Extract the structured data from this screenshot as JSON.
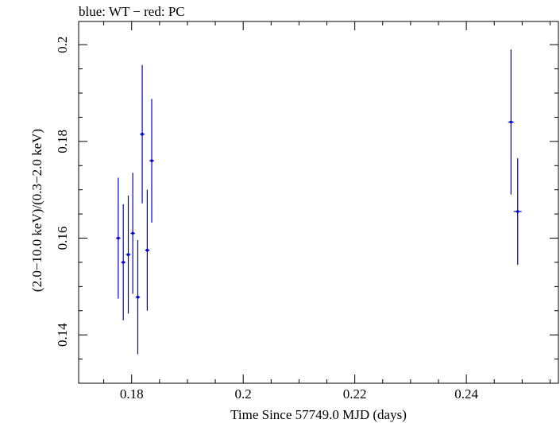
{
  "chart_data": {
    "type": "scatter",
    "title": "blue: WT − red: PC",
    "xlabel": "Time Since 57749.0 MJD (days)",
    "ylabel": "(2.0−10.0 keV)/(0.3−2.0 keV)",
    "xlim": [
      0.1705,
      0.2565
    ],
    "ylim": [
      0.13,
      0.2048
    ],
    "x_ticks": [
      0.18,
      0.2,
      0.22,
      0.24
    ],
    "x_tick_labels": [
      "0.18",
      "0.2",
      "0.22",
      "0.24"
    ],
    "y_ticks": [
      0.14,
      0.16,
      0.18,
      0.2
    ],
    "y_tick_labels": [
      "0.14",
      "0.16",
      "0.18",
      "0.2"
    ],
    "grid": false,
    "series": [
      {
        "name": "WT",
        "color": "#0000cc",
        "points": [
          {
            "x": 0.1776,
            "y": 0.16,
            "xerr": 0.0004,
            "yerr": 0.0125
          },
          {
            "x": 0.1785,
            "y": 0.155,
            "xerr": 0.0004,
            "yerr": 0.012
          },
          {
            "x": 0.1794,
            "y": 0.1566,
            "xerr": 0.0004,
            "yerr": 0.0122
          },
          {
            "x": 0.1802,
            "y": 0.161,
            "xerr": 0.0004,
            "yerr": 0.0125
          },
          {
            "x": 0.1811,
            "y": 0.1478,
            "xerr": 0.0004,
            "yerr": 0.0118
          },
          {
            "x": 0.1819,
            "y": 0.1815,
            "xerr": 0.0004,
            "yerr": 0.0143
          },
          {
            "x": 0.1828,
            "y": 0.1575,
            "xerr": 0.0004,
            "yerr": 0.0125
          },
          {
            "x": 0.1836,
            "y": 0.176,
            "xerr": 0.0004,
            "yerr": 0.0128
          },
          {
            "x": 0.248,
            "y": 0.184,
            "xerr": 0.0005,
            "yerr": 0.015
          },
          {
            "x": 0.2492,
            "y": 0.1655,
            "xerr": 0.0007,
            "yerr": 0.011
          }
        ]
      }
    ]
  }
}
